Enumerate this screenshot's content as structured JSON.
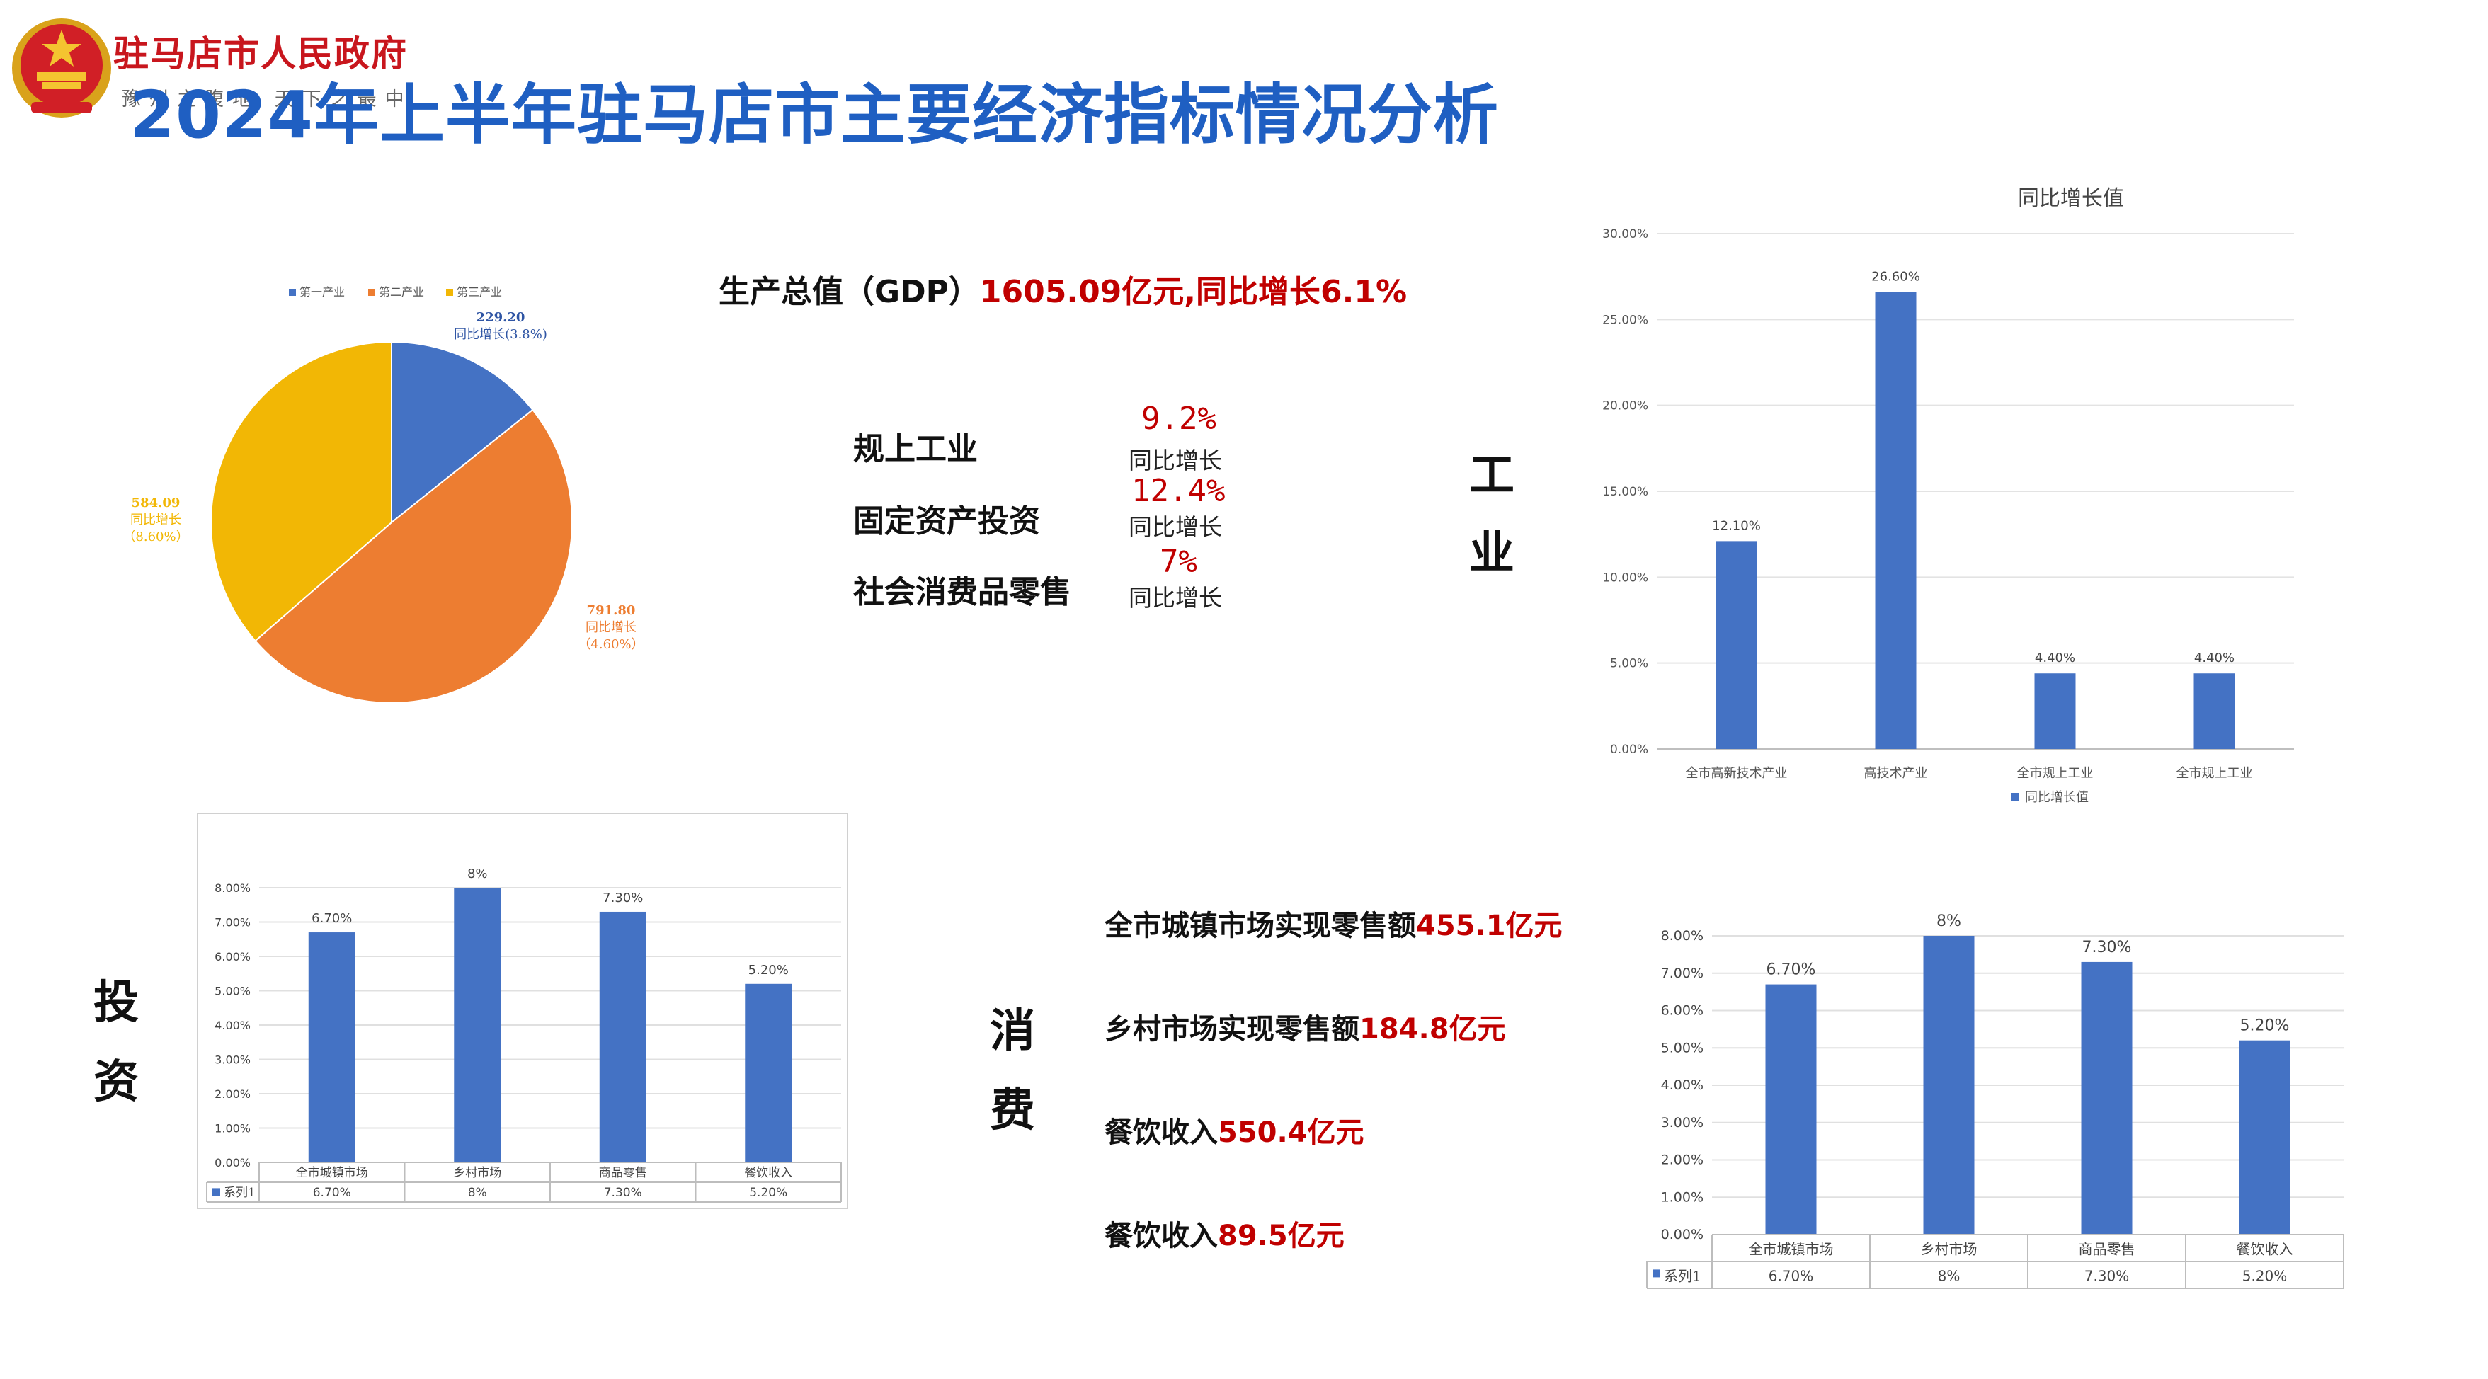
{
  "header": {
    "org_name": "驻马店市人民政府",
    "org_slogan": "豫州之腹地 天下之最中",
    "title": "2024年上半年驻马店市主要经济指标情况分析"
  },
  "gdp": {
    "label": "生产总值（GDP）",
    "value": "1605.09亿元,同比增长6.1%"
  },
  "indicators": [
    {
      "label": "规上工业",
      "value": "9.2%",
      "sub": "同比增长"
    },
    {
      "label": "固定资产投资",
      "value": "12.4%",
      "sub": "同比增长"
    },
    {
      "label": "社会消费品零售",
      "value": "7%",
      "sub": "同比增长"
    }
  ],
  "sections": {
    "industry": [
      "工",
      "业"
    ],
    "investment": [
      "投",
      "资"
    ],
    "consumption": [
      "消",
      "费"
    ]
  },
  "consumption_lines": [
    {
      "label": "全市城镇市场实现零售额",
      "value": "455.1亿元"
    },
    {
      "label": "乡村市场实现零售额",
      "value": "184.8亿元"
    },
    {
      "label": "餐饮收入",
      "value": "550.4亿元"
    },
    {
      "label": "餐饮收入",
      "value": "89.5亿元"
    }
  ],
  "colors": {
    "red": "#c00000",
    "title_blue": "#1f5fc2",
    "bar_blue": "#4472c4",
    "pie_orange": "#ed7d31",
    "pie_yellow": "#f2b705"
  },
  "chart_data": [
    {
      "type": "pie",
      "legend": [
        "第一产业",
        "第二产业",
        "第三产业"
      ],
      "legend_position": "top",
      "values": [
        229.2,
        791.8,
        584.09
      ],
      "labels": [
        [
          "229.20",
          "同比增长(3.8%)"
        ],
        [
          "791.80",
          "同比增长",
          "（4.60%）"
        ],
        [
          "584.09",
          "同比增长",
          "（8.60%）"
        ]
      ],
      "colors": [
        "#4472c4",
        "#ed7d31",
        "#f2b705"
      ]
    },
    {
      "type": "bar",
      "title": "同比增长值",
      "categories": [
        "全市高新技术产业",
        "高技术产业",
        "全市规上工业",
        "全市规上工业"
      ],
      "values": [
        12.1,
        26.6,
        4.4,
        4.4
      ],
      "data_labels": [
        "12.10%",
        "26.60%",
        "4.40%",
        "4.40%"
      ],
      "ylim": [
        0,
        30
      ],
      "y_ticks": [
        "0.00%",
        "5.00%",
        "10.00%",
        "15.00%",
        "20.00%",
        "25.00%",
        "30.00%"
      ],
      "legend": [
        "同比增长值"
      ],
      "legend_position": "bottom",
      "grid": true
    },
    {
      "type": "bar",
      "categories": [
        "全市城镇市场",
        "乡村市场",
        "商品零售",
        "餐饮收入"
      ],
      "values": [
        6.7,
        8,
        7.3,
        5.2
      ],
      "data_labels": [
        "6.70%",
        "8%",
        "7.30%",
        "5.20%"
      ],
      "ylim": [
        0,
        8
      ],
      "y_ticks": [
        "0.00%",
        "1.00%",
        "2.00%",
        "3.00%",
        "4.00%",
        "5.00%",
        "6.00%",
        "7.00%",
        "8.00%"
      ],
      "table_series": "系列1",
      "grid": true
    },
    {
      "type": "bar",
      "categories": [
        "全市城镇市场",
        "乡村市场",
        "商品零售",
        "餐饮收入"
      ],
      "values": [
        6.7,
        8,
        7.3,
        5.2
      ],
      "data_labels": [
        "6.70%",
        "8%",
        "7.30%",
        "5.20%"
      ],
      "ylim": [
        0,
        8
      ],
      "y_ticks": [
        "0.00%",
        "1.00%",
        "2.00%",
        "3.00%",
        "4.00%",
        "5.00%",
        "6.00%",
        "7.00%",
        "8.00%"
      ],
      "table_series": "系列1",
      "grid": true
    }
  ]
}
